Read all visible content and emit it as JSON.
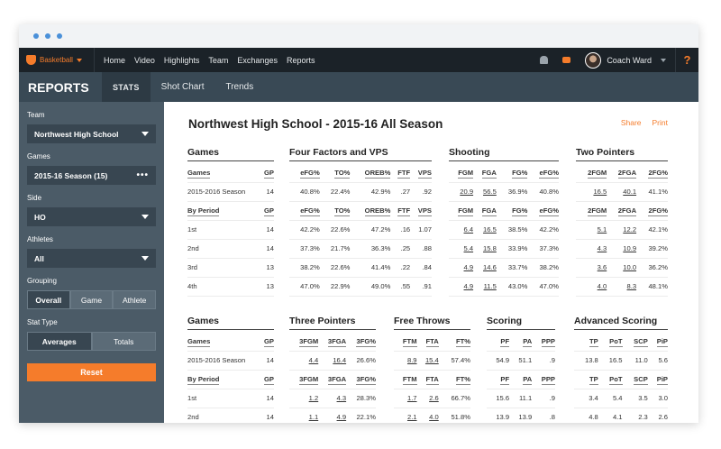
{
  "nav": {
    "brand": "Basketball",
    "links": [
      "Home",
      "Video",
      "Highlights",
      "Team",
      "Exchanges",
      "Reports"
    ],
    "user": "Coach Ward",
    "help": "?"
  },
  "subnav": {
    "title": "REPORTS",
    "tabs": [
      "STATS",
      "Shot Chart",
      "Trends"
    ]
  },
  "sidebar": {
    "team_label": "Team",
    "team_value": "Northwest High School",
    "games_label": "Games",
    "games_value": "2015-16 Season (15)",
    "games_more": "•••",
    "side_label": "Side",
    "side_value": "HO",
    "athletes_label": "Athletes",
    "athletes_value": "All",
    "grouping_label": "Grouping",
    "grouping_options": [
      "Overall",
      "Game",
      "Athlete"
    ],
    "stattype_label": "Stat Type",
    "stattype_options": [
      "Averages",
      "Totals"
    ],
    "reset": "Reset"
  },
  "main": {
    "title": "Northwest High School - 2015-16 All Season",
    "share": "Share",
    "print": "Print"
  },
  "sections": {
    "games1": {
      "title": "Games",
      "h1": [
        "Games",
        "GP"
      ],
      "season": [
        "2015-2016 Season",
        "14"
      ],
      "h2": [
        "By Period",
        "GP"
      ],
      "rows": [
        [
          "1st",
          "14"
        ],
        [
          "2nd",
          "14"
        ],
        [
          "3rd",
          "13"
        ],
        [
          "4th",
          "13"
        ]
      ]
    },
    "four": {
      "title": "Four Factors and VPS",
      "h": [
        "eFG%",
        "TO%",
        "OREB%",
        "FTF",
        "VPS"
      ],
      "season": [
        "40.8%",
        "22.4%",
        "42.9%",
        ".27",
        ".92"
      ],
      "rows": [
        [
          "42.2%",
          "22.6%",
          "47.2%",
          ".16",
          "1.07"
        ],
        [
          "37.3%",
          "21.7%",
          "36.3%",
          ".25",
          ".88"
        ],
        [
          "38.2%",
          "22.6%",
          "41.4%",
          ".22",
          ".84"
        ],
        [
          "47.0%",
          "22.9%",
          "49.0%",
          ".55",
          ".91"
        ]
      ]
    },
    "shoot": {
      "title": "Shooting",
      "h": [
        "FGM",
        "FGA",
        "FG%",
        "eFG%"
      ],
      "season": [
        "20.9",
        "56.5",
        "36.9%",
        "40.8%"
      ],
      "rows": [
        [
          "6.4",
          "16.5",
          "38.5%",
          "42.2%"
        ],
        [
          "5.4",
          "15.8",
          "33.9%",
          "37.3%"
        ],
        [
          "4.9",
          "14.6",
          "33.7%",
          "38.2%"
        ],
        [
          "4.9",
          "11.5",
          "43.0%",
          "47.0%"
        ]
      ]
    },
    "two": {
      "title": "Two Pointers",
      "h": [
        "2FGM",
        "2FGA",
        "2FG%"
      ],
      "season": [
        "16.5",
        "40.1",
        "41.1%"
      ],
      "rows": [
        [
          "5.1",
          "12.2",
          "42.1%"
        ],
        [
          "4.3",
          "10.9",
          "39.2%"
        ],
        [
          "3.6",
          "10.0",
          "36.2%"
        ],
        [
          "4.0",
          "8.3",
          "48.1%"
        ]
      ]
    },
    "games2": {
      "title": "Games",
      "h1": [
        "Games",
        "GP"
      ],
      "season": [
        "2015-2016 Season",
        "14"
      ],
      "h2": [
        "By Period",
        "GP"
      ],
      "rows": [
        [
          "1st",
          "14"
        ],
        [
          "2nd",
          "14"
        ]
      ]
    },
    "three": {
      "title": "Three Pointers",
      "h": [
        "3FGM",
        "3FGA",
        "3FG%"
      ],
      "season": [
        "4.4",
        "16.4",
        "26.6%"
      ],
      "rows": [
        [
          "1.2",
          "4.3",
          "28.3%"
        ],
        [
          "1.1",
          "4.9",
          "22.1%"
        ]
      ]
    },
    "ft": {
      "title": "Free Throws",
      "h": [
        "FTM",
        "FTA",
        "FT%"
      ],
      "season": [
        "8.9",
        "15.4",
        "57.4%"
      ],
      "rows": [
        [
          "1.7",
          "2.6",
          "66.7%"
        ],
        [
          "2.1",
          "4.0",
          "51.8%"
        ]
      ]
    },
    "scoring": {
      "title": "Scoring",
      "h": [
        "PF",
        "PA",
        "PPP"
      ],
      "season": [
        "54.9",
        "51.1",
        ".9"
      ],
      "rows": [
        [
          "15.6",
          "11.1",
          ".9"
        ],
        [
          "13.9",
          "13.9",
          ".8"
        ]
      ]
    },
    "adv": {
      "title": "Advanced Scoring",
      "h": [
        "TP",
        "PoT",
        "SCP",
        "PiP"
      ],
      "season": [
        "13.8",
        "16.5",
        "11.0",
        "5.6"
      ],
      "rows": [
        [
          "3.4",
          "5.4",
          "3.5",
          "3.0"
        ],
        [
          "4.8",
          "4.1",
          "2.3",
          "2.6"
        ]
      ]
    }
  }
}
